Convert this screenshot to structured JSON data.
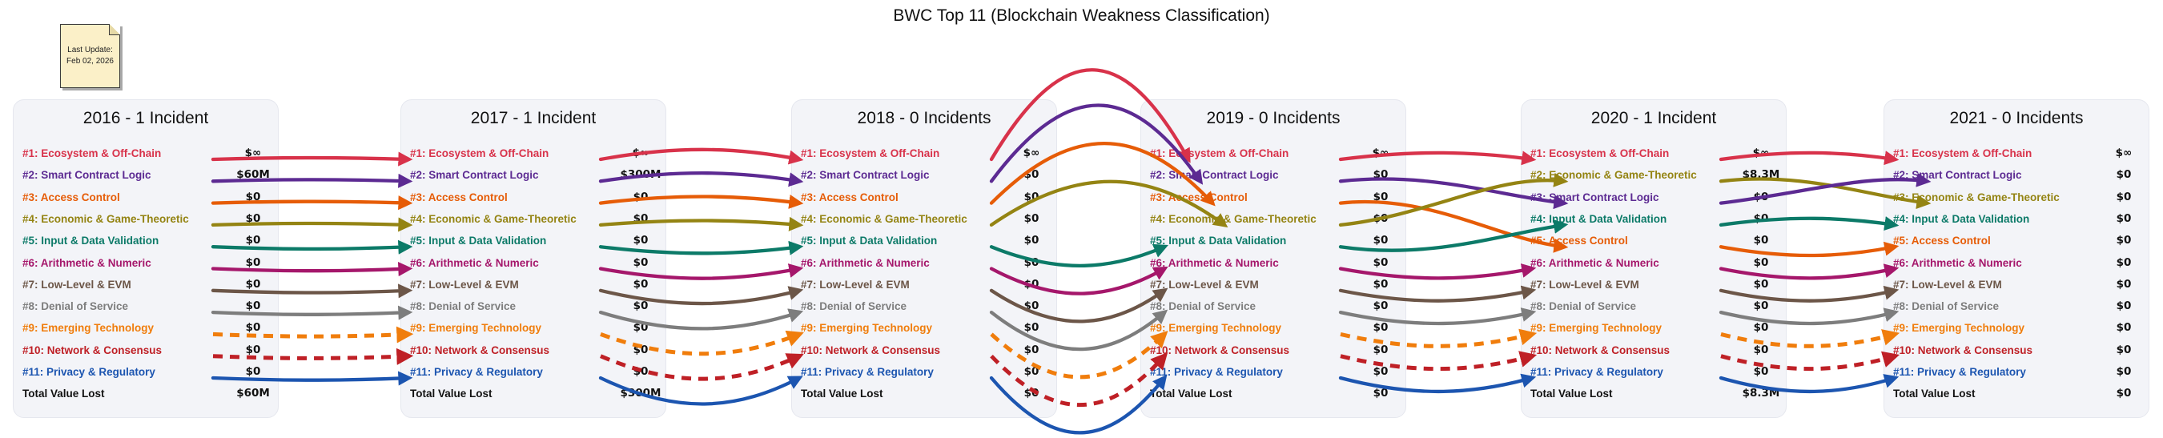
{
  "title": "BWC Top 11 (Blockchain Weakness Classification)",
  "note": {
    "line1": "Last Update:",
    "line2": "Feb 02, 2026"
  },
  "categories": [
    {
      "name": "Ecosystem & Off-Chain",
      "color": "#d8324a",
      "dash": false
    },
    {
      "name": "Smart Contract Logic",
      "color": "#5c2a92",
      "dash": false
    },
    {
      "name": "Access Control",
      "color": "#e65c07",
      "dash": false
    },
    {
      "name": "Economic & Game-Theoretic",
      "color": "#948413",
      "dash": false
    },
    {
      "name": "Input & Data Validation",
      "color": "#0c7a68",
      "dash": false
    },
    {
      "name": "Arithmetic & Numeric",
      "color": "#a5176b",
      "dash": false
    },
    {
      "name": "Low-Level & EVM",
      "color": "#6c5648",
      "dash": false
    },
    {
      "name": "Denial of Service",
      "color": "#7d7d7d",
      "dash": false
    },
    {
      "name": "Emerging Technology",
      "color": "#f07d0c",
      "dash": true
    },
    {
      "name": "Network & Consensus",
      "color": "#bf2026",
      "dash": true
    },
    {
      "name": "Privacy & Regulatory",
      "color": "#1c55b0",
      "dash": false
    }
  ],
  "chart_data": {
    "type": "table",
    "subtype": "ranking-flow",
    "title": "BWC Top 11 (Blockchain Weakness Classification)",
    "grid": false,
    "legend_position": "none",
    "years": [
      {
        "year": 2016,
        "incidents": 1,
        "label": "2016 - 1 Incident",
        "total_label": "Total Value Lost",
        "total": "$60M",
        "rows": [
          {
            "rank": "#1",
            "category": "Ecosystem & Off-Chain",
            "value": "$∞"
          },
          {
            "rank": "#2",
            "category": "Smart Contract Logic",
            "value": "$60M"
          },
          {
            "rank": "#3",
            "category": "Access Control",
            "value": "$0"
          },
          {
            "rank": "#4",
            "category": "Economic & Game-Theoretic",
            "value": "$0"
          },
          {
            "rank": "#5",
            "category": "Input & Data Validation",
            "value": "$0"
          },
          {
            "rank": "#6",
            "category": "Arithmetic & Numeric",
            "value": "$0"
          },
          {
            "rank": "#7",
            "category": "Low-Level & EVM",
            "value": "$0"
          },
          {
            "rank": "#8",
            "category": "Denial of Service",
            "value": "$0"
          },
          {
            "rank": "#9",
            "category": "Emerging Technology",
            "value": "$0"
          },
          {
            "rank": "#10",
            "category": "Network & Consensus",
            "value": "$0"
          },
          {
            "rank": "#11",
            "category": "Privacy & Regulatory",
            "value": "$0"
          }
        ]
      },
      {
        "year": 2017,
        "incidents": 1,
        "label": "2017 - 1 Incident",
        "total_label": "Total Value Lost",
        "total": "$300M",
        "rows": [
          {
            "rank": "#1",
            "category": "Ecosystem & Off-Chain",
            "value": "$∞"
          },
          {
            "rank": "#2",
            "category": "Smart Contract Logic",
            "value": "$300M"
          },
          {
            "rank": "#3",
            "category": "Access Control",
            "value": "$0"
          },
          {
            "rank": "#4",
            "category": "Economic & Game-Theoretic",
            "value": "$0"
          },
          {
            "rank": "#5",
            "category": "Input & Data Validation",
            "value": "$0"
          },
          {
            "rank": "#6",
            "category": "Arithmetic & Numeric",
            "value": "$0"
          },
          {
            "rank": "#7",
            "category": "Low-Level & EVM",
            "value": "$0"
          },
          {
            "rank": "#8",
            "category": "Denial of Service",
            "value": "$0"
          },
          {
            "rank": "#9",
            "category": "Emerging Technology",
            "value": "$0"
          },
          {
            "rank": "#10",
            "category": "Network & Consensus",
            "value": "$0"
          },
          {
            "rank": "#11",
            "category": "Privacy & Regulatory",
            "value": "$0"
          }
        ]
      },
      {
        "year": 2018,
        "incidents": 0,
        "label": "2018 - 0 Incidents",
        "total_label": "Total Value Lost",
        "total": "$0",
        "rows": [
          {
            "rank": "#1",
            "category": "Ecosystem & Off-Chain",
            "value": "$∞"
          },
          {
            "rank": "#2",
            "category": "Smart Contract Logic",
            "value": "$0"
          },
          {
            "rank": "#3",
            "category": "Access Control",
            "value": "$0"
          },
          {
            "rank": "#4",
            "category": "Economic & Game-Theoretic",
            "value": "$0"
          },
          {
            "rank": "#5",
            "category": "Input & Data Validation",
            "value": "$0"
          },
          {
            "rank": "#6",
            "category": "Arithmetic & Numeric",
            "value": "$0"
          },
          {
            "rank": "#7",
            "category": "Low-Level & EVM",
            "value": "$0"
          },
          {
            "rank": "#8",
            "category": "Denial of Service",
            "value": "$0"
          },
          {
            "rank": "#9",
            "category": "Emerging Technology",
            "value": "$0"
          },
          {
            "rank": "#10",
            "category": "Network & Consensus",
            "value": "$0"
          },
          {
            "rank": "#11",
            "category": "Privacy & Regulatory",
            "value": "$0"
          }
        ]
      },
      {
        "year": 2019,
        "incidents": 0,
        "label": "2019 - 0 Incidents",
        "total_label": "Total Value Lost",
        "total": "$0",
        "rows": [
          {
            "rank": "#1",
            "category": "Ecosystem & Off-Chain",
            "value": "$∞"
          },
          {
            "rank": "#2",
            "category": "Smart Contract Logic",
            "value": "$0"
          },
          {
            "rank": "#3",
            "category": "Access Control",
            "value": "$0"
          },
          {
            "rank": "#4",
            "category": "Economic & Game-Theoretic",
            "value": "$0"
          },
          {
            "rank": "#5",
            "category": "Input & Data Validation",
            "value": "$0"
          },
          {
            "rank": "#6",
            "category": "Arithmetic & Numeric",
            "value": "$0"
          },
          {
            "rank": "#7",
            "category": "Low-Level & EVM",
            "value": "$0"
          },
          {
            "rank": "#8",
            "category": "Denial of Service",
            "value": "$0"
          },
          {
            "rank": "#9",
            "category": "Emerging Technology",
            "value": "$0"
          },
          {
            "rank": "#10",
            "category": "Network & Consensus",
            "value": "$0"
          },
          {
            "rank": "#11",
            "category": "Privacy & Regulatory",
            "value": "$0"
          }
        ]
      },
      {
        "year": 2020,
        "incidents": 1,
        "label": "2020 - 1 Incident",
        "total_label": "Total Value Lost",
        "total": "$8.3M",
        "rows": [
          {
            "rank": "#1",
            "category": "Ecosystem & Off-Chain",
            "value": "$∞"
          },
          {
            "rank": "#2",
            "category": "Economic & Game-Theoretic",
            "value": "$8.3M"
          },
          {
            "rank": "#3",
            "category": "Smart Contract Logic",
            "value": "$0"
          },
          {
            "rank": "#4",
            "category": "Input & Data Validation",
            "value": "$0"
          },
          {
            "rank": "#5",
            "category": "Access Control",
            "value": "$0"
          },
          {
            "rank": "#6",
            "category": "Arithmetic & Numeric",
            "value": "$0"
          },
          {
            "rank": "#7",
            "category": "Low-Level & EVM",
            "value": "$0"
          },
          {
            "rank": "#8",
            "category": "Denial of Service",
            "value": "$0"
          },
          {
            "rank": "#9",
            "category": "Emerging Technology",
            "value": "$0"
          },
          {
            "rank": "#10",
            "category": "Network & Consensus",
            "value": "$0"
          },
          {
            "rank": "#11",
            "category": "Privacy & Regulatory",
            "value": "$0"
          }
        ]
      },
      {
        "year": 2021,
        "incidents": 0,
        "label": "2021 - 0 Incidents",
        "total_label": "Total Value Lost",
        "total": "$0",
        "rows": [
          {
            "rank": "#1",
            "category": "Ecosystem & Off-Chain",
            "value": "$∞"
          },
          {
            "rank": "#2",
            "category": "Smart Contract Logic",
            "value": "$0"
          },
          {
            "rank": "#3",
            "category": "Economic & Game-Theoretic",
            "value": "$0"
          },
          {
            "rank": "#4",
            "category": "Input & Data Validation",
            "value": "$0"
          },
          {
            "rank": "#5",
            "category": "Access Control",
            "value": "$0"
          },
          {
            "rank": "#6",
            "category": "Arithmetic & Numeric",
            "value": "$0"
          },
          {
            "rank": "#7",
            "category": "Low-Level & EVM",
            "value": "$0"
          },
          {
            "rank": "#8",
            "category": "Denial of Service",
            "value": "$0"
          },
          {
            "rank": "#9",
            "category": "Emerging Technology",
            "value": "$0"
          },
          {
            "rank": "#10",
            "category": "Network & Consensus",
            "value": "$0"
          },
          {
            "rank": "#11",
            "category": "Privacy & Regulatory",
            "value": "$0"
          }
        ]
      }
    ]
  }
}
